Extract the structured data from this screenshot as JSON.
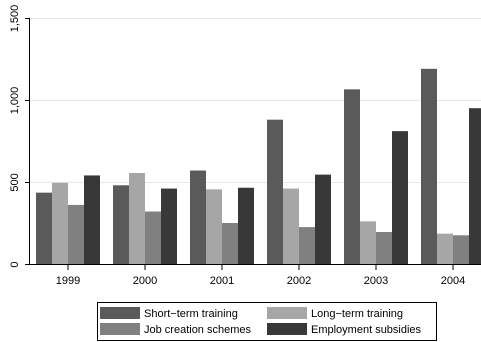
{
  "chart_data": {
    "type": "bar",
    "title": "",
    "xlabel": "",
    "ylabel": "",
    "categories": [
      "1999",
      "2000",
      "2001",
      "2002",
      "2003",
      "2004"
    ],
    "ylim": [
      0,
      1500
    ],
    "yticks": [
      0,
      500,
      1000,
      1500
    ],
    "ytick_labels": [
      "0",
      "500",
      "1,000",
      "1,500"
    ],
    "grid": true,
    "legend_position": "bottom",
    "series": [
      {
        "name": "Short−term training",
        "color": "#5a5a5a",
        "values": [
          435,
          480,
          570,
          880,
          1065,
          1190
        ]
      },
      {
        "name": "Long−term training",
        "color": "#a6a6a6",
        "values": [
          495,
          555,
          455,
          460,
          260,
          185
        ]
      },
      {
        "name": "Job creation schemes",
        "color": "#808080",
        "values": [
          360,
          320,
          250,
          225,
          195,
          175
        ]
      },
      {
        "name": "Employment subsidies",
        "color": "#383838",
        "values": [
          540,
          460,
          465,
          545,
          810,
          950
        ]
      }
    ]
  }
}
